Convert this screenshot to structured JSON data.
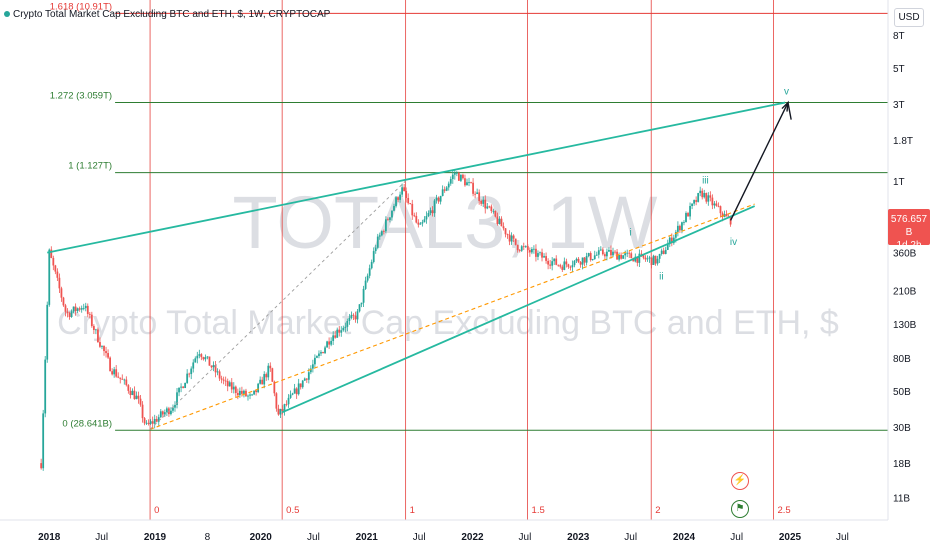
{
  "header": {
    "title": "Crypto Total Market Cap Excluding BTC and ETH, $, 1W, CRYPTOCAP",
    "currency_button": "USD"
  },
  "price_tag": {
    "value": "576.657 B",
    "countdown": "1d 2h"
  },
  "watermark": {
    "symbol": "TOTAL3, 1W",
    "description": "Crypto Total Market Cap Excluding BTC and ETH, $"
  },
  "colors": {
    "up": "#26a69a",
    "down": "#ef5350",
    "fib_red": "#e53935",
    "fib_green": "#2e7d32",
    "trend": "#26b9a0",
    "dashed_orange": "#ff9800"
  },
  "chart_data": {
    "type": "candlestick",
    "scale": "log",
    "y_axis_labels": [
      {
        "label": "8T",
        "value": 8000
      },
      {
        "label": "5T",
        "value": 5000
      },
      {
        "label": "3T",
        "value": 3000
      },
      {
        "label": "1.8T",
        "value": 1800
      },
      {
        "label": "1T",
        "value": 1000
      },
      {
        "label": "360B",
        "value": 360
      },
      {
        "label": "210B",
        "value": 210
      },
      {
        "label": "130B",
        "value": 130
      },
      {
        "label": "80B",
        "value": 80
      },
      {
        "label": "50B",
        "value": 50
      },
      {
        "label": "30B",
        "value": 30
      },
      {
        "label": "18B",
        "value": 18
      },
      {
        "label": "11B",
        "value": 11
      }
    ],
    "x_axis_labels": [
      "2018",
      "Jul",
      "2019",
      "8",
      "2020",
      "Jul",
      "2021",
      "Jul",
      "2022",
      "Jul",
      "2023",
      "Jul",
      "2024",
      "Jul",
      "2025",
      "Jul"
    ],
    "price_series_billion": [
      {
        "date": "2017-12",
        "value": 13
      },
      {
        "date": "2018-01",
        "value": 360
      },
      {
        "date": "2018-03",
        "value": 150
      },
      {
        "date": "2018-05",
        "value": 170
      },
      {
        "date": "2018-08",
        "value": 70
      },
      {
        "date": "2018-11",
        "value": 45
      },
      {
        "date": "2018-12",
        "value": 30
      },
      {
        "date": "2019-03",
        "value": 40
      },
      {
        "date": "2019-06",
        "value": 90
      },
      {
        "date": "2019-09",
        "value": 55
      },
      {
        "date": "2019-12",
        "value": 45
      },
      {
        "date": "2020-02",
        "value": 70
      },
      {
        "date": "2020-03",
        "value": 35
      },
      {
        "date": "2020-06",
        "value": 60
      },
      {
        "date": "2020-09",
        "value": 110
      },
      {
        "date": "2020-12",
        "value": 150
      },
      {
        "date": "2021-02",
        "value": 400
      },
      {
        "date": "2021-05",
        "value": 900
      },
      {
        "date": "2021-07",
        "value": 500
      },
      {
        "date": "2021-11",
        "value": 1127
      },
      {
        "date": "2022-01",
        "value": 900
      },
      {
        "date": "2022-06",
        "value": 400
      },
      {
        "date": "2022-11",
        "value": 300
      },
      {
        "date": "2023-04",
        "value": 360
      },
      {
        "date": "2023-10",
        "value": 320
      },
      {
        "date": "2024-03",
        "value": 850
      },
      {
        "date": "2024-06",
        "value": 576.657
      }
    ],
    "fib_levels": [
      {
        "label": "1.618 (10.91T)",
        "value": 10910
      },
      {
        "label": "1.272 (3.059T)",
        "value": 3059
      },
      {
        "label": "1 (1.127T)",
        "value": 1127
      },
      {
        "label": "0 (28.641B)",
        "value": 28.641
      }
    ],
    "fib_time_labels": [
      "0",
      "0.5",
      "1",
      "1.5",
      "2",
      "2.5"
    ],
    "wave_labels": [
      "i",
      "ii",
      "iii",
      "iv",
      "v"
    ]
  }
}
